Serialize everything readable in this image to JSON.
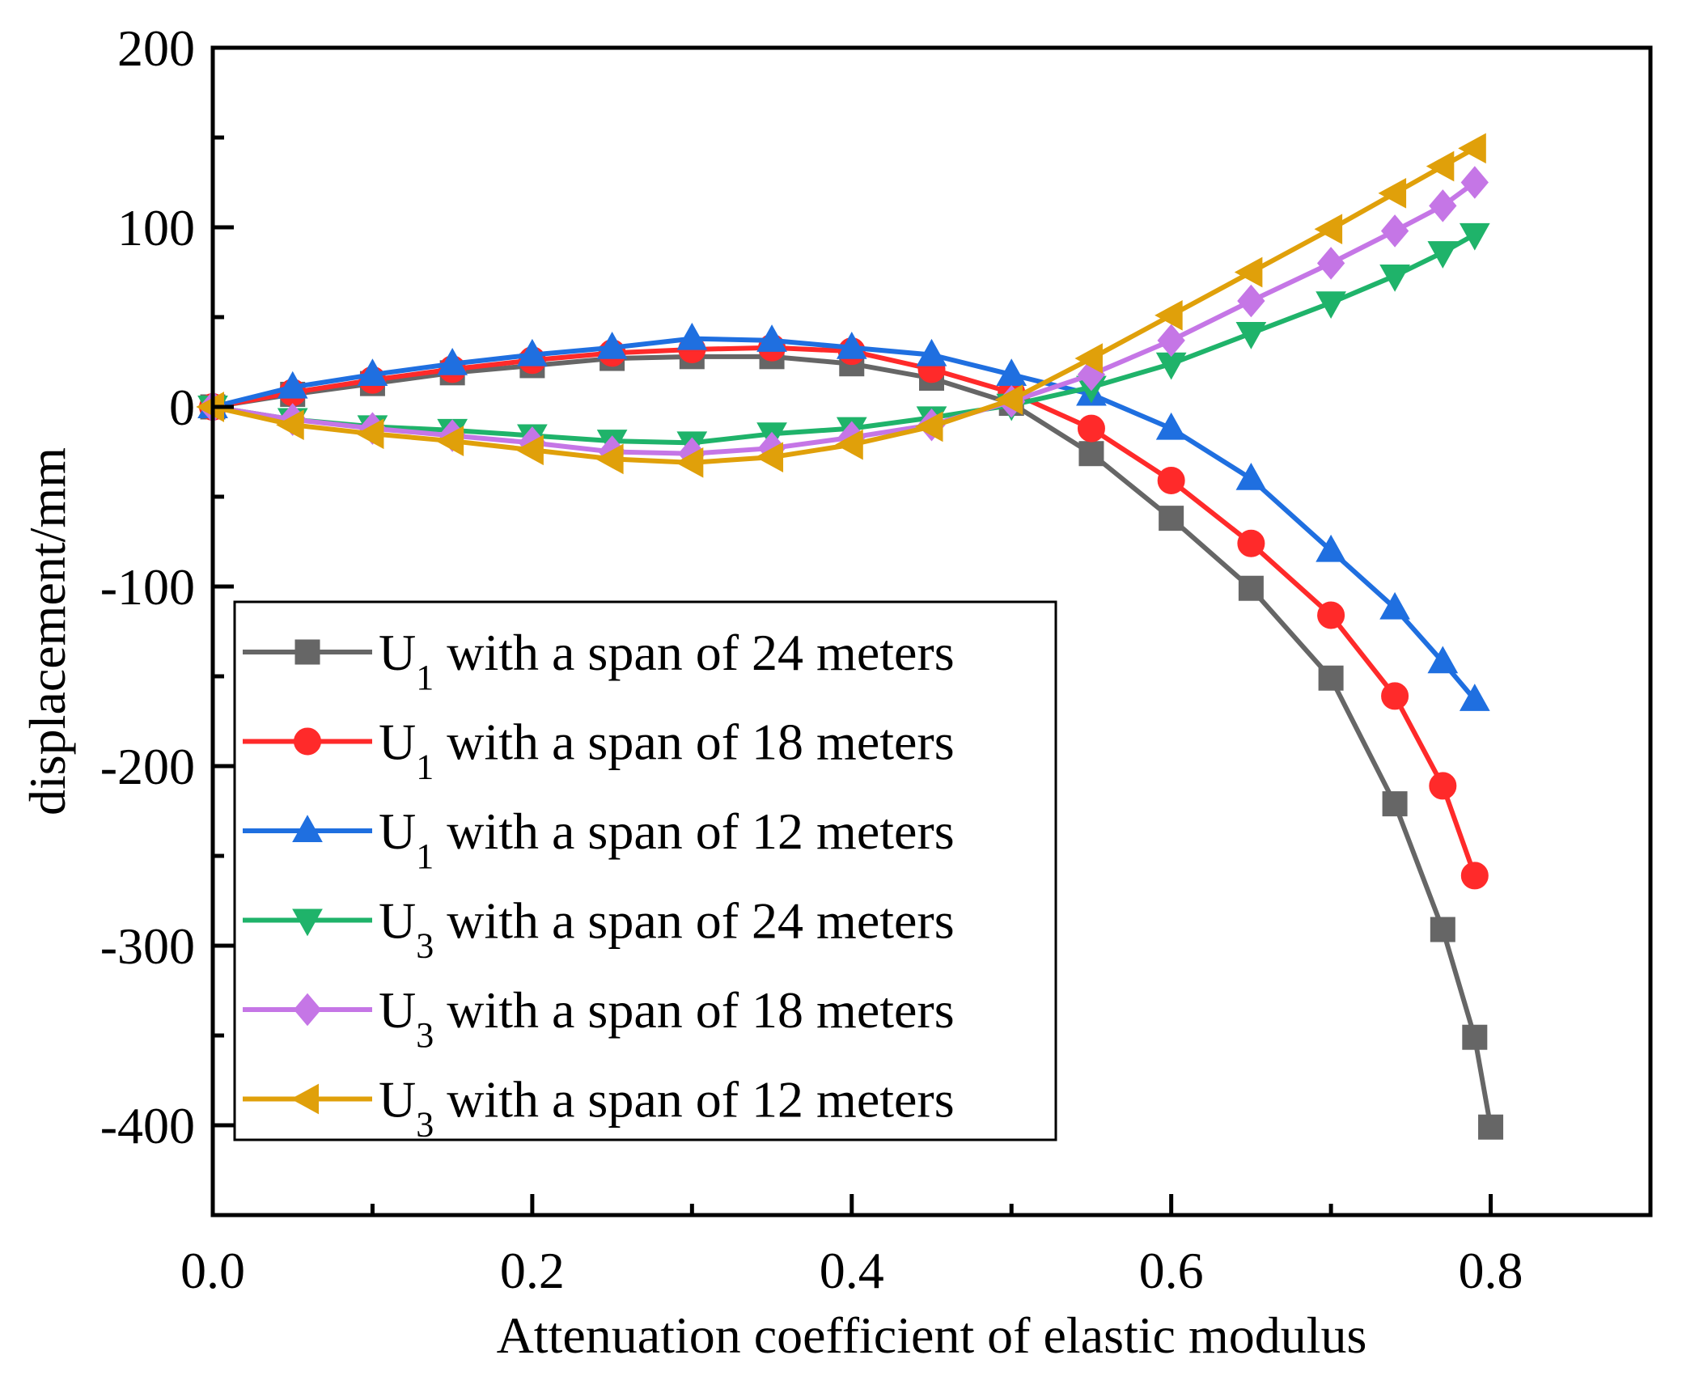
{
  "chart_data": {
    "type": "line",
    "title": "",
    "xlabel": "Attenuation coefficient of elastic modulus",
    "ylabel": "displacement/mm",
    "xlim": [
      0.0,
      0.9
    ],
    "ylim": [
      -450,
      200
    ],
    "xticks": [
      0.0,
      0.2,
      0.4,
      0.6,
      0.8
    ],
    "xtick_labels": [
      "0.0",
      "0.2",
      "0.4",
      "0.6",
      "0.8"
    ],
    "yticks": [
      200,
      100,
      0,
      -100,
      -200,
      -300,
      -400
    ],
    "ytick_labels": [
      "200",
      "100",
      "0",
      "-100",
      "-200",
      "-300",
      "-400"
    ],
    "grid": false,
    "legend_position": "bottom-left",
    "series": [
      {
        "name": "U1 with a span of 24 meters",
        "legend_main": "U",
        "legend_sub": "1",
        "legend_rest": " with a span of 24 meters",
        "color": "#666666",
        "marker": "square",
        "x": [
          0.0,
          0.05,
          0.1,
          0.15,
          0.2,
          0.25,
          0.3,
          0.35,
          0.4,
          0.45,
          0.5,
          0.55,
          0.6,
          0.65,
          0.7,
          0.74,
          0.77,
          0.79,
          0.8
        ],
        "y": [
          0,
          7,
          13,
          19,
          23,
          27,
          28,
          28,
          24,
          16,
          2,
          -26,
          -62,
          -101,
          -151,
          -221,
          -291,
          -351,
          -401
        ]
      },
      {
        "name": "U1 with a span of 18 meters",
        "legend_main": "U",
        "legend_sub": "1",
        "legend_rest": " with a span of 18 meters",
        "color": "#ff2a2a",
        "marker": "circle",
        "x": [
          0.0,
          0.05,
          0.1,
          0.15,
          0.2,
          0.25,
          0.3,
          0.35,
          0.4,
          0.45,
          0.5,
          0.55,
          0.6,
          0.65,
          0.7,
          0.74,
          0.77,
          0.79
        ],
        "y": [
          0,
          8,
          15,
          21,
          26,
          30,
          32,
          33,
          31,
          21,
          8,
          -12,
          -41,
          -76,
          -116,
          -161,
          -211,
          -261
        ]
      },
      {
        "name": "U1 with a span of 12 meters",
        "legend_main": "U",
        "legend_sub": "1",
        "legend_rest": " with a span of 12 meters",
        "color": "#1f6fe0",
        "marker": "triangle-up",
        "x": [
          0.0,
          0.05,
          0.1,
          0.15,
          0.2,
          0.25,
          0.3,
          0.35,
          0.4,
          0.45,
          0.5,
          0.55,
          0.6,
          0.65,
          0.7,
          0.74,
          0.77,
          0.79
        ],
        "y": [
          0,
          11,
          18,
          24,
          29,
          33,
          38,
          37,
          33,
          29,
          18,
          7,
          -12,
          -40,
          -80,
          -112,
          -142,
          -163
        ]
      },
      {
        "name": "U3 with a span of 24 meters",
        "legend_main": "U",
        "legend_sub": "3",
        "legend_rest": " with a span of 24 meters",
        "color": "#1fb36a",
        "marker": "triangle-down",
        "x": [
          0.0,
          0.05,
          0.1,
          0.15,
          0.2,
          0.25,
          0.3,
          0.35,
          0.4,
          0.45,
          0.5,
          0.55,
          0.6,
          0.65,
          0.7,
          0.74,
          0.77,
          0.79
        ],
        "y": [
          0,
          -7,
          -11,
          -13,
          -16,
          -19,
          -20,
          -15,
          -12,
          -6,
          1,
          11,
          24,
          41,
          58,
          73,
          86,
          96
        ]
      },
      {
        "name": "U3 with a span of 18 meters",
        "legend_main": "U",
        "legend_sub": "3",
        "legend_rest": " with a span of 18 meters",
        "color": "#c576e6",
        "marker": "diamond",
        "x": [
          0.0,
          0.05,
          0.1,
          0.15,
          0.2,
          0.25,
          0.3,
          0.35,
          0.4,
          0.45,
          0.5,
          0.55,
          0.6,
          0.65,
          0.7,
          0.74,
          0.77,
          0.79
        ],
        "y": [
          0,
          -7,
          -12,
          -16,
          -20,
          -25,
          -26,
          -23,
          -17,
          -10,
          3,
          18,
          37,
          59,
          80,
          98,
          112,
          125
        ]
      },
      {
        "name": "U3 with a span of 12 meters",
        "legend_main": "U",
        "legend_sub": "3",
        "legend_rest": " with a span of 12 meters",
        "color": "#e0a00a",
        "marker": "triangle-left",
        "x": [
          0.0,
          0.05,
          0.1,
          0.15,
          0.2,
          0.25,
          0.3,
          0.35,
          0.4,
          0.45,
          0.5,
          0.55,
          0.6,
          0.65,
          0.7,
          0.74,
          0.77,
          0.79
        ],
        "y": [
          0,
          -10,
          -15,
          -19,
          -24,
          -29,
          -31,
          -28,
          -21,
          -11,
          4,
          27,
          51,
          75,
          99,
          119,
          134,
          144
        ]
      }
    ]
  }
}
